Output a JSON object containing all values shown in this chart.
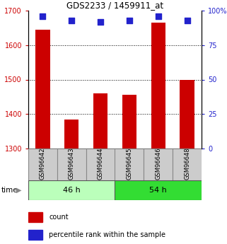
{
  "title": "GDS2233 / 1459911_at",
  "samples": [
    "GSM96642",
    "GSM96643",
    "GSM96644",
    "GSM96645",
    "GSM96646",
    "GSM96648"
  ],
  "count_values": [
    1645,
    1385,
    1460,
    1455,
    1665,
    1500
  ],
  "percentile_values": [
    96,
    93,
    92,
    93,
    96,
    93
  ],
  "count_baseline": 1300,
  "left_ylim": [
    1300,
    1700
  ],
  "left_yticks": [
    1300,
    1400,
    1500,
    1600,
    1700
  ],
  "right_ylim": [
    0,
    100
  ],
  "right_yticks": [
    0,
    25,
    50,
    75,
    100
  ],
  "right_yticklabels": [
    "0",
    "25",
    "50",
    "75",
    "100%"
  ],
  "bar_color": "#cc0000",
  "dot_color": "#2222cc",
  "bar_width": 0.5,
  "groups": [
    {
      "label": "46 h",
      "color": "#bbffbb",
      "start": 0,
      "end": 3
    },
    {
      "label": "54 h",
      "color": "#33dd33",
      "start": 3,
      "end": 6
    }
  ],
  "tick_label_color_left": "#cc0000",
  "tick_label_color_right": "#2222cc",
  "legend_count_label": "count",
  "legend_pct_label": "percentile rank within the sample",
  "dot_size": 35,
  "dot_marker": "s",
  "sample_box_color": "#cccccc",
  "sample_box_edge": "#888888",
  "grid_lines": [
    1400,
    1500,
    1600
  ]
}
